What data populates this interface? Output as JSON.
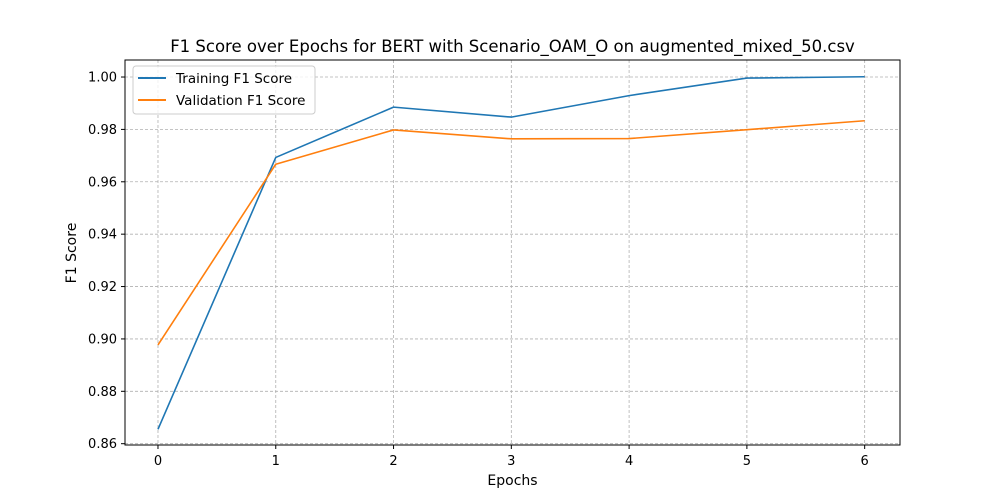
{
  "chart_data": {
    "type": "line",
    "title": "F1 Score over Epochs for BERT with Scenario_OAM_O on augmented_mixed_50.csv",
    "xlabel": "Epochs",
    "ylabel": "F1 Score",
    "x": [
      0,
      1,
      2,
      3,
      4,
      5,
      6
    ],
    "xlim": [
      -0.28,
      6.3
    ],
    "ylim": [
      0.8595,
      1.0065
    ],
    "x_ticks": [
      0,
      1,
      2,
      3,
      4,
      5,
      6
    ],
    "x_tick_labels": [
      "0",
      "1",
      "2",
      "3",
      "4",
      "5",
      "6"
    ],
    "y_ticks": [
      0.86,
      0.88,
      0.9,
      0.92,
      0.94,
      0.96,
      0.98,
      1.0
    ],
    "y_tick_labels": [
      "0.86",
      "0.88",
      "0.90",
      "0.92",
      "0.94",
      "0.96",
      "0.98",
      "1.00"
    ],
    "grid": true,
    "legend_position": "top-left",
    "series": [
      {
        "name": "Training F1 Score",
        "color": "#1f77b4",
        "values": [
          0.8655,
          0.9693,
          0.9885,
          0.9847,
          0.9929,
          0.9996,
          1.0001
        ]
      },
      {
        "name": "Validation F1 Score",
        "color": "#ff7f0e",
        "values": [
          0.8977,
          0.9667,
          0.9798,
          0.9764,
          0.9765,
          0.9799,
          0.9833
        ]
      }
    ]
  }
}
